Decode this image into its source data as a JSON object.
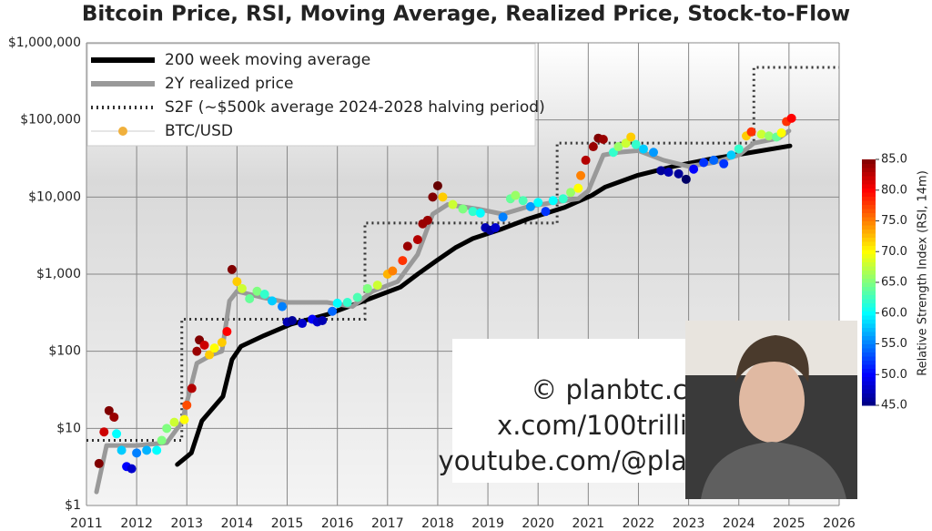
{
  "chart_data": {
    "type": "log-overlay",
    "title": "Bitcoin Price, RSI, Moving Average, Realized Price, Stock-to-Flow",
    "y_scale": "log",
    "grid": true,
    "legend": "upper left",
    "xlim": [
      2011,
      2026
    ],
    "xticks": [
      2011,
      2012,
      2013,
      2014,
      2015,
      2016,
      2017,
      2018,
      2019,
      2020,
      2021,
      2022,
      2023,
      2024,
      2025,
      2026
    ],
    "ylim": [
      1,
      1000000
    ],
    "yticks": [
      {
        "value": 1,
        "label": "$1"
      },
      {
        "value": 10,
        "label": "$10"
      },
      {
        "value": 100,
        "label": "$100"
      },
      {
        "value": 1000,
        "label": "$1,000"
      },
      {
        "value": 10000,
        "label": "$10,000"
      },
      {
        "value": 100000,
        "label": "$100,000"
      },
      {
        "value": 1000000,
        "label": "$1,000,000"
      }
    ],
    "colorbar_label": "Relative Strength Index (RSI, 14m)",
    "clim": [
      45,
      85
    ],
    "cticks": [
      {
        "value": 45,
        "label": "45.0"
      },
      {
        "value": 50,
        "label": "50.0"
      },
      {
        "value": 55,
        "label": "55.0"
      },
      {
        "value": 60,
        "label": "60.0"
      },
      {
        "value": 65,
        "label": "65.0"
      },
      {
        "value": 70,
        "label": "70.0"
      },
      {
        "value": 75,
        "label": "75.0"
      },
      {
        "value": 80,
        "label": "80.0"
      },
      {
        "value": 85,
        "label": "85.0"
      }
    ],
    "series": [
      {
        "name": "200 week moving average",
        "kind": "line",
        "color": "#000000",
        "width": 5,
        "x": [
          2012.81,
          2013.09,
          2013.3,
          2013.72,
          2013.9,
          2014.08,
          2014.54,
          2015.08,
          2015.8,
          2016.53,
          2017.26,
          2017.6,
          2017.98,
          2018.35,
          2018.7,
          2019.25,
          2019.8,
          2020.52,
          2021.07,
          2021.34,
          2021.97,
          2022.7,
          2023.42,
          2024.15,
          2025.02
        ],
        "values": [
          3.4,
          4.8,
          12.5,
          26,
          78,
          116,
          160,
          225,
          300,
          450,
          680,
          1000,
          1500,
          2200,
          2900,
          3800,
          5200,
          7300,
          10500,
          13500,
          19000,
          25000,
          31000,
          37000,
          46000
        ]
      },
      {
        "name": "2Y realized price",
        "kind": "line",
        "color": "#999999",
        "width": 5,
        "x": [
          2011.2,
          2011.4,
          2012.0,
          2012.6,
          2012.9,
          2013.2,
          2013.5,
          2013.7,
          2013.85,
          2014.0,
          2014.5,
          2015.0,
          2015.8,
          2016.3,
          2016.7,
          2017.2,
          2017.6,
          2017.9,
          2018.2,
          2018.8,
          2019.3,
          2019.8,
          2020.3,
          2020.8,
          2021.0,
          2021.3,
          2021.6,
          2022.0,
          2022.5,
          2023.0,
          2023.5,
          2024.0,
          2024.3,
          2024.8,
          2025.0
        ],
        "values": [
          1.5,
          6,
          6,
          6.5,
          12,
          70,
          90,
          100,
          450,
          600,
          500,
          430,
          430,
          380,
          600,
          800,
          1800,
          6000,
          8000,
          7000,
          6000,
          7500,
          8500,
          9500,
          12000,
          35000,
          38000,
          40000,
          30000,
          25000,
          28000,
          35000,
          50000,
          58000,
          72000
        ]
      },
      {
        "name": "S2F (~$500k average 2024-2028 halving period)",
        "kind": "dotted",
        "color": "#333333",
        "width": 3,
        "x": [
          2011,
          2012.9,
          2012.9,
          2016.55,
          2016.55,
          2020.38,
          2020.38,
          2024.3,
          2024.3,
          2026
        ],
        "values": [
          7,
          7,
          260,
          260,
          4600,
          4600,
          50000,
          50000,
          480000,
          480000
        ]
      },
      {
        "name": "BTC/USD",
        "kind": "scatter",
        "color": "#f0b03c",
        "x": [
          2011.25,
          2011.35,
          2011.45,
          2011.55,
          2011.6,
          2011.7,
          2011.8,
          2011.9,
          2012.0,
          2012.2,
          2012.4,
          2012.5,
          2012.6,
          2012.75,
          2012.95,
          2013.0,
          2013.1,
          2013.2,
          2013.25,
          2013.35,
          2013.45,
          2013.55,
          2013.7,
          2013.8,
          2013.9,
          2014.0,
          2014.1,
          2014.25,
          2014.4,
          2014.55,
          2014.7,
          2014.9,
          2015.0,
          2015.1,
          2015.3,
          2015.5,
          2015.6,
          2015.7,
          2015.9,
          2016.0,
          2016.2,
          2016.4,
          2016.6,
          2016.8,
          2017.0,
          2017.1,
          2017.3,
          2017.4,
          2017.6,
          2017.7,
          2017.8,
          2017.9,
          2018.0,
          2018.1,
          2018.3,
          2018.5,
          2018.7,
          2018.85,
          2018.95,
          2019.05,
          2019.15,
          2019.3,
          2019.45,
          2019.55,
          2019.7,
          2019.85,
          2020.0,
          2020.15,
          2020.3,
          2020.5,
          2020.65,
          2020.8,
          2020.85,
          2020.95,
          2021.1,
          2021.2,
          2021.3,
          2021.5,
          2021.6,
          2021.75,
          2021.85,
          2021.95,
          2022.1,
          2022.3,
          2022.45,
          2022.6,
          2022.8,
          2022.95,
          2023.1,
          2023.3,
          2023.5,
          2023.7,
          2023.85,
          2024.0,
          2024.15,
          2024.25,
          2024.45,
          2024.6,
          2024.75,
          2024.85,
          2024.95,
          2025.05
        ],
        "values": [
          3.5,
          9,
          17,
          14,
          8.5,
          5.2,
          3.2,
          3.0,
          4.8,
          5.2,
          5.2,
          7,
          10,
          12,
          13,
          20,
          33,
          100,
          140,
          120,
          90,
          110,
          130,
          180,
          1150,
          800,
          650,
          480,
          600,
          550,
          450,
          380,
          240,
          250,
          230,
          260,
          240,
          250,
          330,
          420,
          430,
          500,
          650,
          720,
          1000,
          1100,
          1500,
          2300,
          2800,
          4500,
          5000,
          10000,
          14000,
          10000,
          8000,
          7000,
          6500,
          6200,
          4000,
          3700,
          4000,
          5500,
          9500,
          10500,
          9000,
          7500,
          8500,
          6500,
          9000,
          9500,
          11500,
          13000,
          19000,
          30000,
          45000,
          58000,
          56000,
          38000,
          45000,
          50000,
          60000,
          48000,
          42000,
          38000,
          22000,
          21000,
          20000,
          17000,
          23000,
          28000,
          30000,
          27000,
          35000,
          42000,
          62000,
          70000,
          65000,
          62000,
          60000,
          68000,
          95000,
          105000
        ],
        "rsi": [
          85,
          82,
          85,
          84,
          60,
          58,
          50,
          48,
          55,
          57,
          60,
          65,
          65,
          68,
          70,
          77,
          83,
          84,
          85,
          82,
          72,
          70,
          72,
          80,
          85,
          72,
          68,
          64,
          65,
          62,
          58,
          55,
          47,
          46,
          48,
          50,
          48,
          47,
          54,
          60,
          62,
          63,
          65,
          68,
          73,
          75,
          78,
          84,
          83,
          84,
          84,
          85,
          86,
          72,
          68,
          65,
          62,
          60,
          47,
          46,
          48,
          55,
          64,
          66,
          63,
          56,
          60,
          52,
          60,
          62,
          66,
          70,
          75,
          83,
          84,
          85,
          84,
          62,
          66,
          68,
          72,
          62,
          58,
          56,
          46,
          47,
          46,
          44,
          50,
          52,
          54,
          52,
          58,
          62,
          72,
          78,
          68,
          66,
          64,
          70,
          78,
          80
        ]
      }
    ]
  },
  "overlay_text": [
    "© planbtc.c",
    "x.com/100trilli",
    "youtube.com/@pla"
  ]
}
